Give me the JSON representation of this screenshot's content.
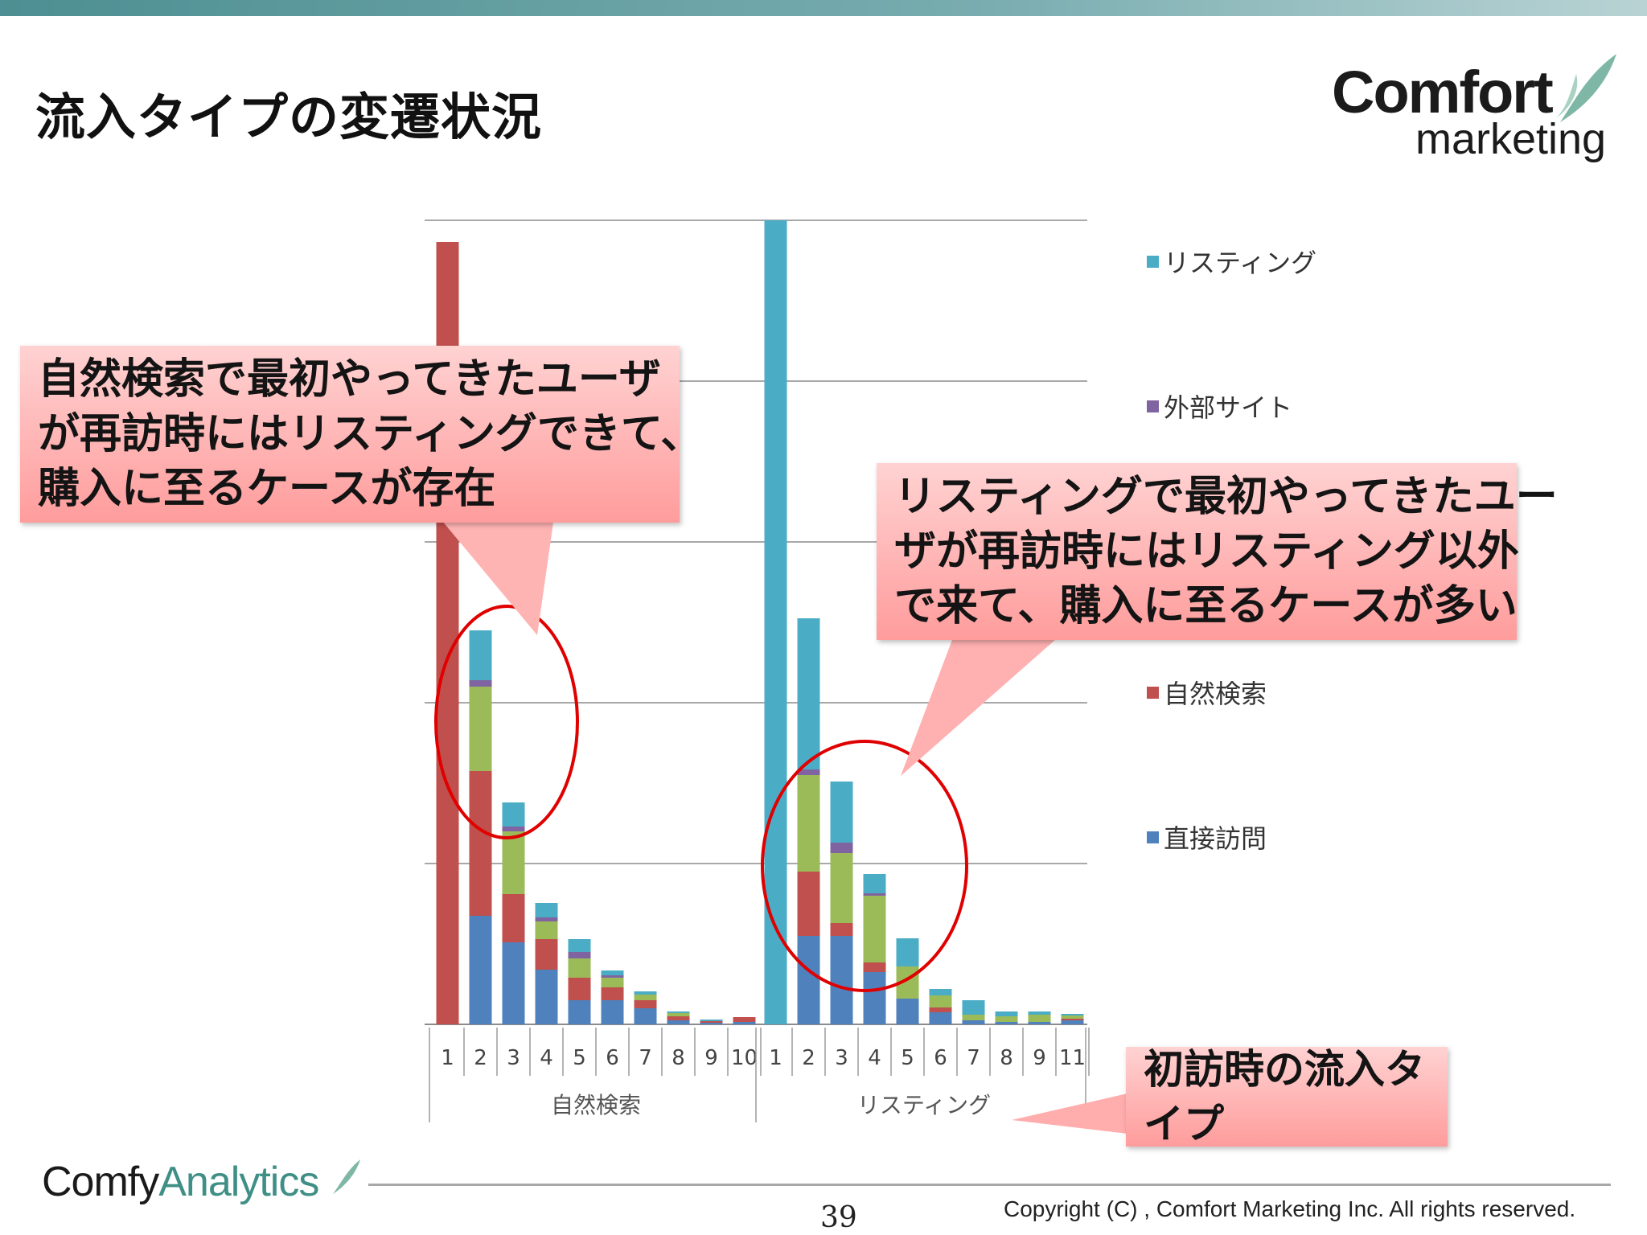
{
  "slide": {
    "title": "流入タイプの変遷状況",
    "page_number": "39",
    "copyright": "Copyright (C) , Comfort Marketing Inc. All rights reserved."
  },
  "logo": {
    "line1": "Comfort",
    "line2": "marketing"
  },
  "footer_logo": {
    "part1": "Comfy",
    "part2": "Analytics"
  },
  "callouts": {
    "organic": [
      "自然検索で最初やってきたユーザ",
      "が再訪時にはリスティングできて、",
      "購入に至るケースが存在"
    ],
    "listing": [
      "リスティングで最初やってきたユー",
      "ザが再訪時にはリスティング以外",
      "で来て、購入に至るケースが多い"
    ],
    "first_visit": "初訪時の流入タイプ"
  },
  "chart_data": {
    "type": "bar",
    "stacked": true,
    "ylim": [
      0,
      100
    ],
    "grid": true,
    "legend_position": "right",
    "series_order_bottom_to_top": [
      "直接訪問",
      "自然検索",
      "",
      "外部サイト",
      "リスティング"
    ],
    "legend": [
      {
        "name": "リスティング",
        "color": "#4bacc6"
      },
      {
        "name": "外部サイト",
        "color": "#8064a2"
      },
      {
        "name": "",
        "color": "#9bbb59"
      },
      {
        "name": "自然検索",
        "color": "#c0504d"
      },
      {
        "name": "直接訪問",
        "color": "#4f81bd"
      }
    ],
    "groups": [
      {
        "label": "自然検索",
        "categories": [
          "1",
          "2",
          "3",
          "4",
          "5",
          "6",
          "7",
          "8",
          "9",
          "10"
        ],
        "series": [
          {
            "color": "#4f81bd",
            "values": [
              0,
              13.5,
              10.2,
              6.8,
              3.0,
              3.0,
              2.0,
              0.5,
              0.2,
              0.3
            ]
          },
          {
            "color": "#c0504d",
            "values": [
              97.3,
              18.0,
              6.0,
              3.8,
              2.8,
              1.6,
              1.0,
              0.5,
              0.2,
              0.6
            ]
          },
          {
            "color": "#9bbb59",
            "values": [
              0,
              10.5,
              7.8,
              2.2,
              2.4,
              1.2,
              0.7,
              0.4,
              0,
              0
            ]
          },
          {
            "color": "#8064a2",
            "values": [
              0,
              0.8,
              0.6,
              0.5,
              0.8,
              0.3,
              0,
              0,
              0,
              0
            ]
          },
          {
            "color": "#4bacc6",
            "values": [
              0,
              6.2,
              3.0,
              1.8,
              1.6,
              0.6,
              0.4,
              0.2,
              0.2,
              0
            ]
          }
        ]
      },
      {
        "label": "リスティング",
        "categories": [
          "1",
          "2",
          "3",
          "4",
          "5",
          "6",
          "7",
          "8",
          "9",
          "11"
        ],
        "series": [
          {
            "color": "#4f81bd",
            "values": [
              0,
              11.0,
              11.0,
              6.5,
              3.2,
              1.5,
              0.5,
              0.3,
              0.3,
              0.5
            ]
          },
          {
            "color": "#c0504d",
            "values": [
              0,
              8.0,
              1.6,
              1.2,
              0,
              0.6,
              0,
              0,
              0,
              0.2
            ]
          },
          {
            "color": "#9bbb59",
            "values": [
              0,
              12.0,
              8.7,
              8.3,
              4.0,
              1.5,
              0.7,
              0.7,
              0.9,
              0.4
            ]
          },
          {
            "color": "#8064a2",
            "values": [
              0,
              0.7,
              1.3,
              0.3,
              0,
              0,
              0,
              0,
              0,
              0
            ]
          },
          {
            "color": "#4bacc6",
            "values": [
              100,
              18.8,
              7.6,
              2.4,
              3.5,
              0.8,
              1.8,
              0.6,
              0.4,
              0.2
            ]
          }
        ]
      }
    ]
  }
}
